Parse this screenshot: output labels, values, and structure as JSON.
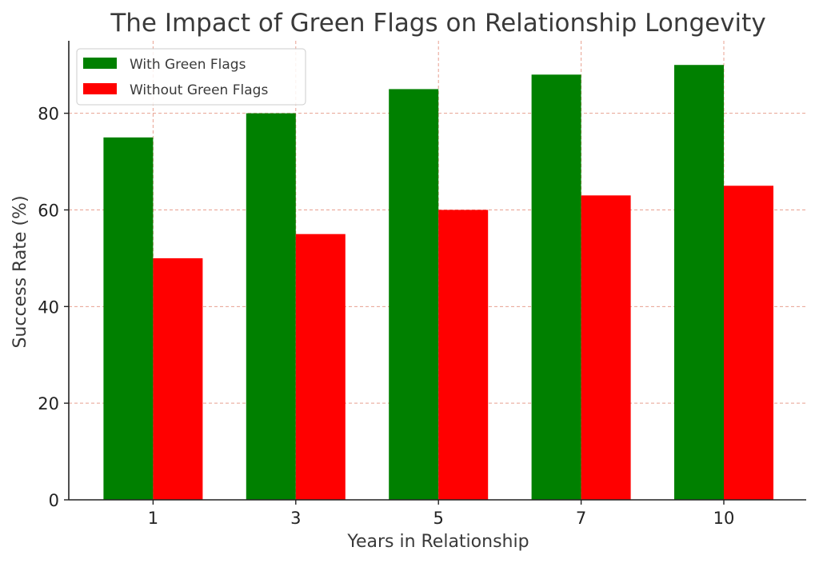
{
  "chart_data": {
    "type": "bar",
    "title": "The Impact of Green Flags on Relationship Longevity",
    "xlabel": "Years in Relationship",
    "ylabel": "Success Rate (%)",
    "categories": [
      "1",
      "3",
      "5",
      "7",
      "10"
    ],
    "series": [
      {
        "name": "With Green Flags",
        "color": "#008000",
        "values": [
          75,
          80,
          85,
          88,
          90
        ]
      },
      {
        "name": "Without Green Flags",
        "color": "#ff0000",
        "values": [
          50,
          55,
          60,
          63,
          65
        ]
      }
    ],
    "ylim": [
      0,
      95
    ],
    "yticks": [
      "0",
      "20",
      "40",
      "60",
      "80"
    ],
    "grid": true,
    "grid_color": "#e8a090",
    "legend_position": "top-left"
  }
}
